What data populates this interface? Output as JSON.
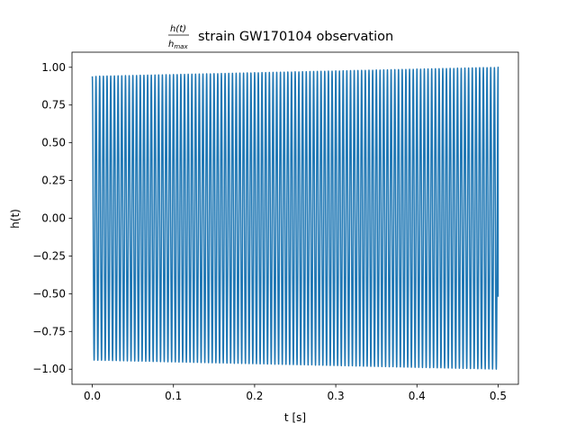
{
  "chart_data": {
    "type": "line",
    "title_fraction": {
      "numerator": "h(t)",
      "denominator": "h",
      "denominator_subscript": "max"
    },
    "title": "strain GW170104 observation",
    "xlabel": "t [s]",
    "ylabel": "h(t)",
    "xlim": [
      -0.025,
      0.525
    ],
    "ylim": [
      -1.1,
      1.1
    ],
    "xticks": [
      "0.0",
      "0.1",
      "0.2",
      "0.3",
      "0.4",
      "0.5"
    ],
    "xtick_values": [
      0.0,
      0.1,
      0.2,
      0.3,
      0.4,
      0.5
    ],
    "yticks": [
      "1.00",
      "0.75",
      "0.50",
      "0.25",
      "0.00",
      "−0.25",
      "−0.50",
      "−0.75",
      "−1.00"
    ],
    "ytick_values": [
      1.0,
      0.75,
      0.5,
      0.25,
      0.0,
      -0.25,
      -0.5,
      -0.75,
      -1.0
    ],
    "grid": false,
    "series": [
      {
        "color": "#1f77b4",
        "t_range": [
          0.0,
          0.5
        ],
        "envelope_start": 0.94,
        "envelope_end": 1.0,
        "frequency_hz": 220,
        "cycles": 110,
        "end_value": -0.52
      }
    ]
  }
}
